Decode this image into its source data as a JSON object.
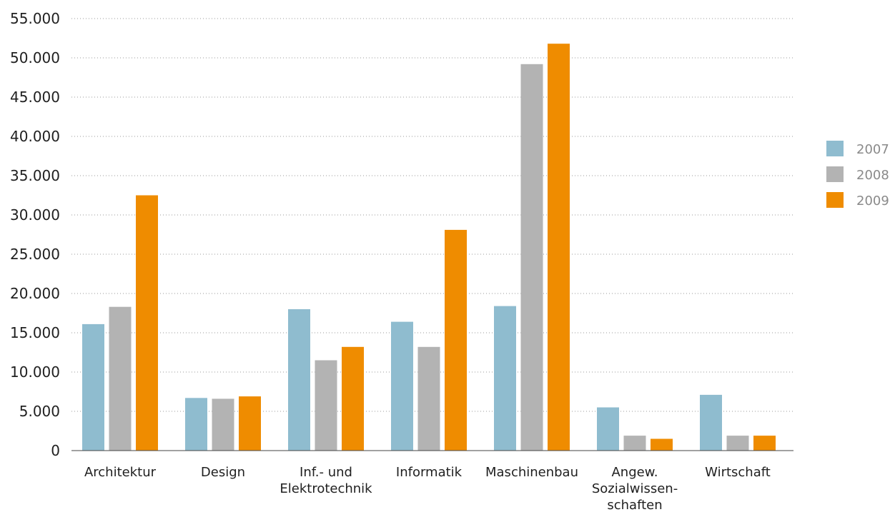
{
  "chart_data": {
    "type": "bar",
    "title": "",
    "xlabel": "",
    "ylabel": "",
    "ylim": [
      0,
      55000
    ],
    "yticks": [
      0,
      5000,
      10000,
      15000,
      20000,
      25000,
      30000,
      35000,
      40000,
      45000,
      50000,
      55000
    ],
    "ytick_labels": [
      "0",
      "5.000",
      "10.000",
      "15.000",
      "20.000",
      "25.000",
      "30.000",
      "35.000",
      "40.000",
      "45.000",
      "50.000",
      "55.000"
    ],
    "grid": true,
    "legend_position": "right",
    "categories": [
      [
        "Architektur"
      ],
      [
        "Design"
      ],
      [
        "Inf.- und",
        "Elektrotechnik"
      ],
      [
        "Informatik"
      ],
      [
        "Maschinenbau"
      ],
      [
        "Angew.",
        "Sozialwissen-",
        "schaften"
      ],
      [
        "Wirtschaft"
      ]
    ],
    "series": [
      {
        "name": "2007",
        "color": "#8fbccf",
        "values": [
          16100,
          6700,
          18000,
          16400,
          18400,
          5500,
          7100
        ]
      },
      {
        "name": "2008",
        "color": "#b3b3b3",
        "values": [
          18300,
          6600,
          11500,
          13200,
          49200,
          1900,
          1900
        ]
      },
      {
        "name": "2009",
        "color": "#ef8c00",
        "values": [
          32500,
          6900,
          13200,
          28100,
          51800,
          1500,
          1900
        ]
      }
    ]
  }
}
